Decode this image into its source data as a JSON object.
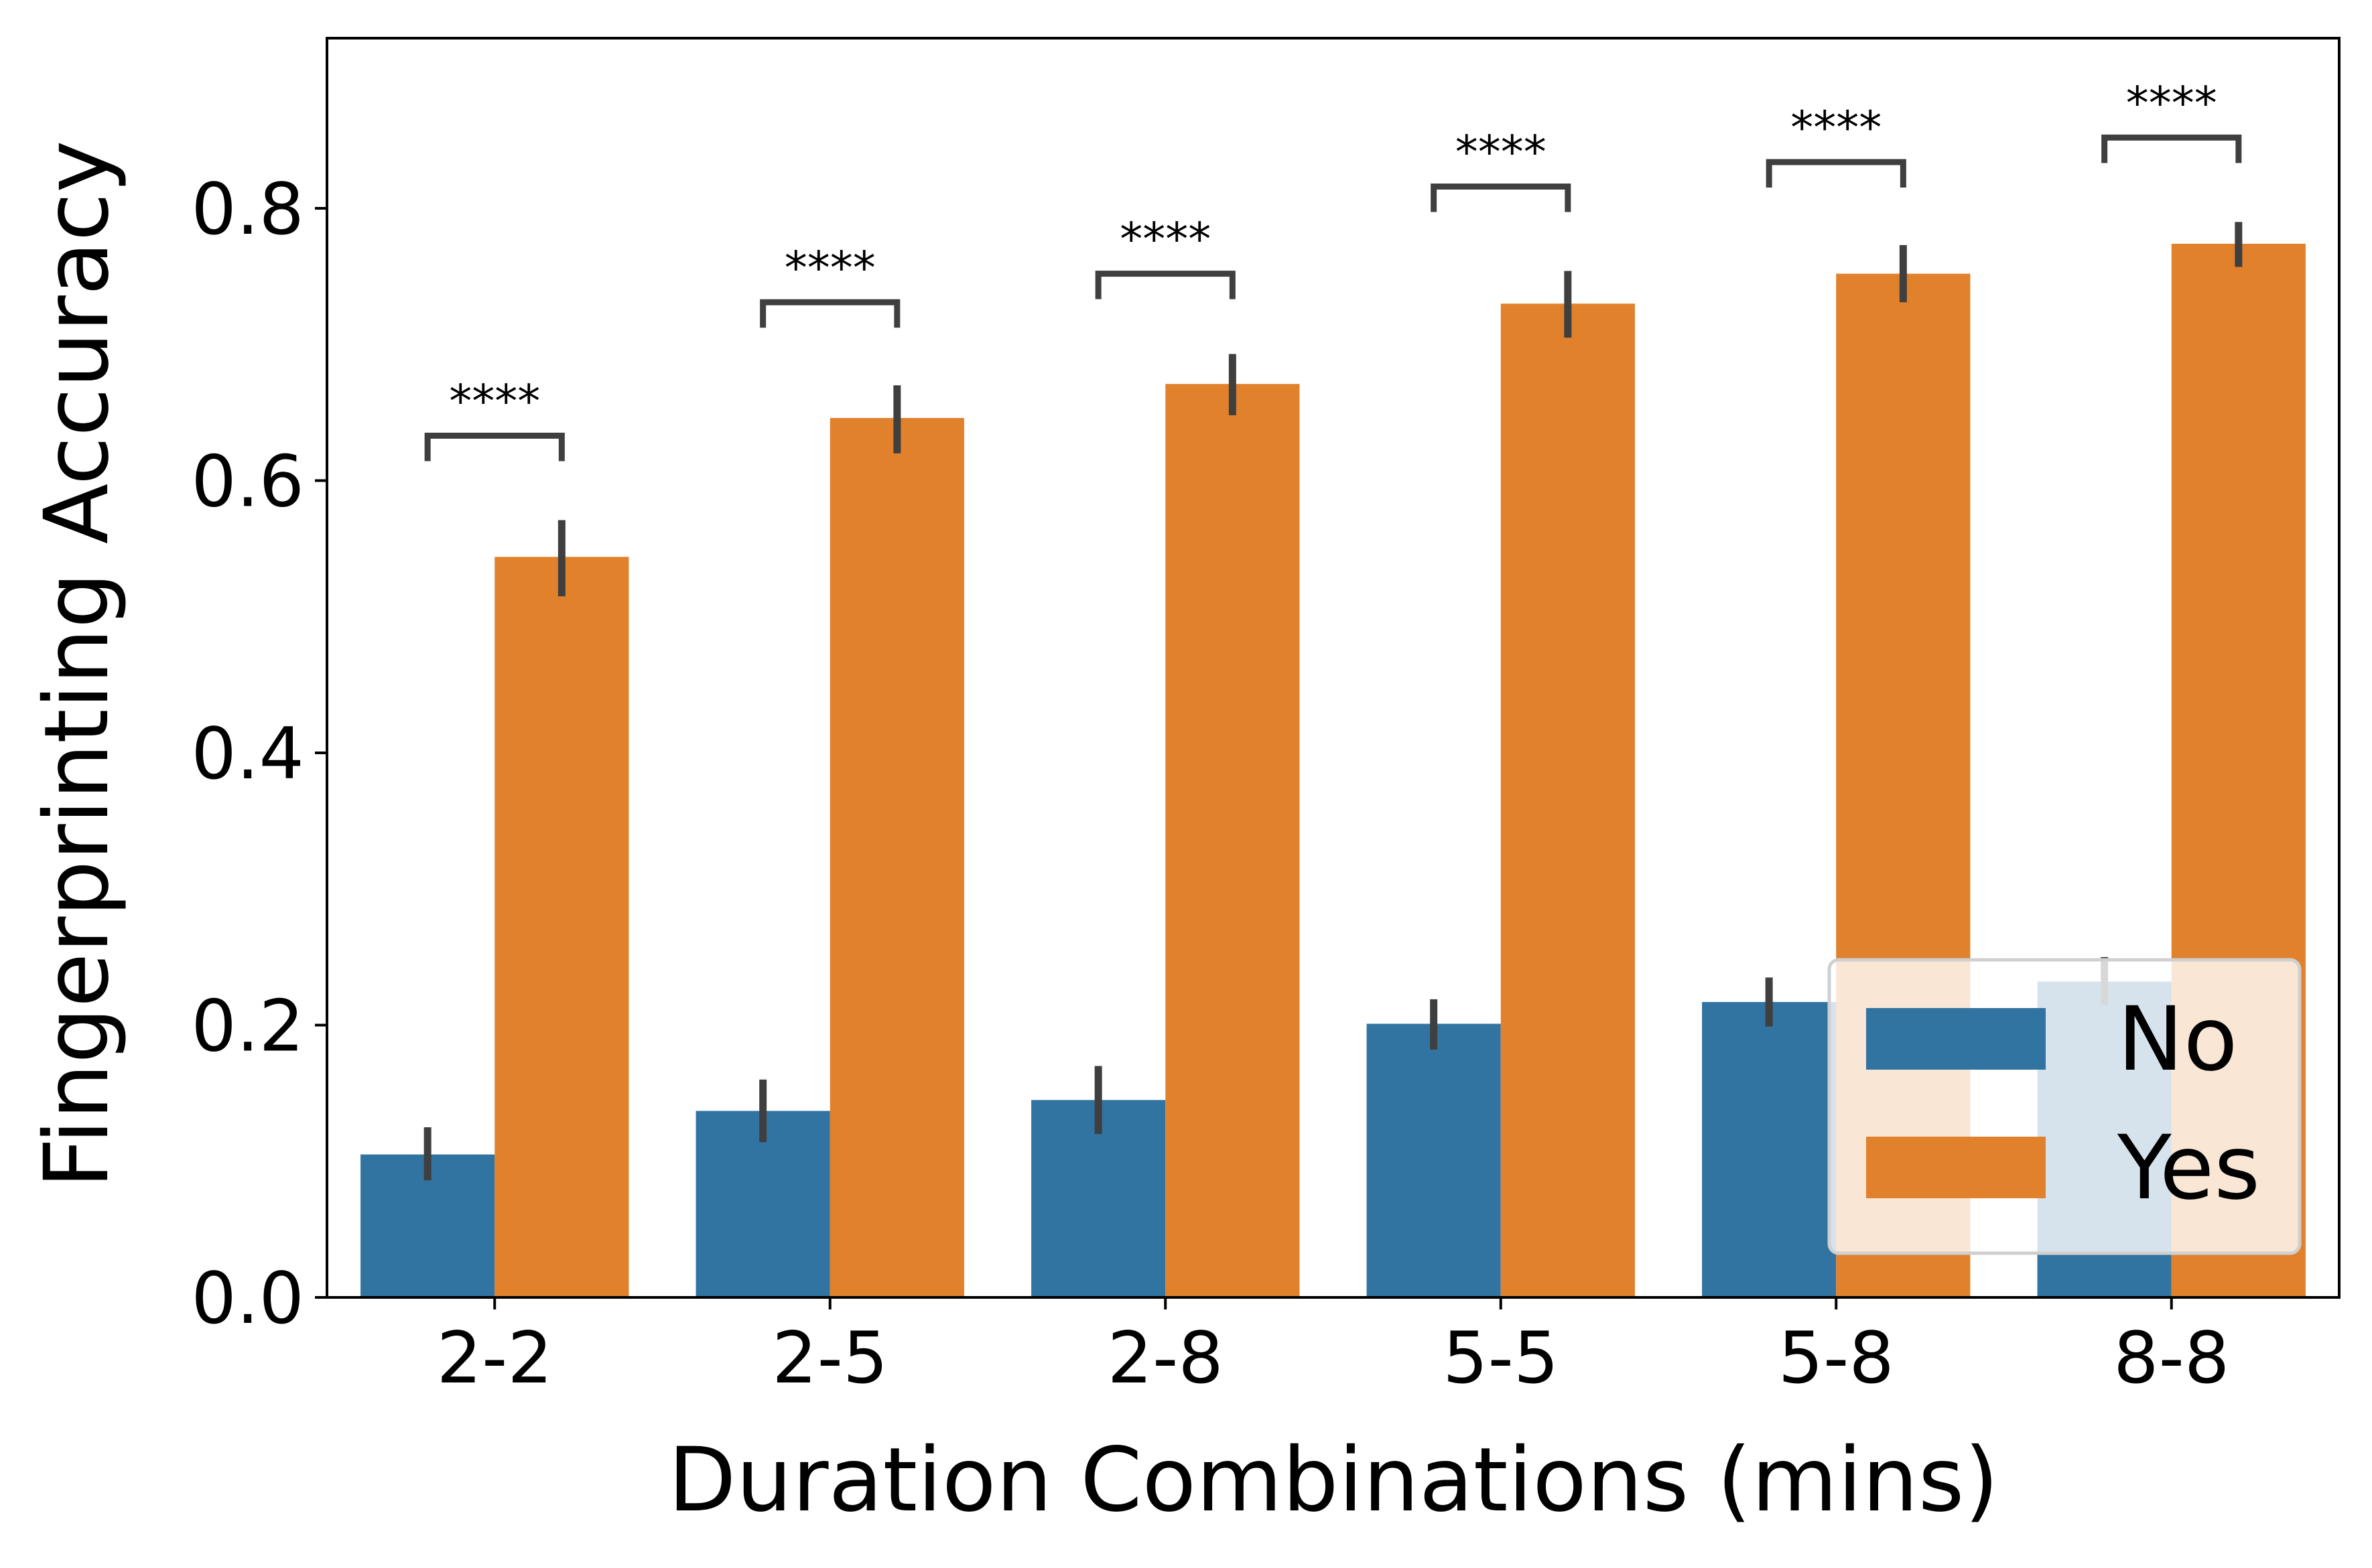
{
  "chart_data": {
    "type": "bar",
    "xlabel": "Duration Combinations (mins)",
    "ylabel": "Fingerprinting Accuracy",
    "categories": [
      "2-2",
      "2-5",
      "2-8",
      "5-5",
      "5-8",
      "8-8"
    ],
    "ylim": [
      0,
      0.925
    ],
    "yticks": [
      "0.0",
      "0.2",
      "0.4",
      "0.6",
      "0.8"
    ],
    "series": [
      {
        "name": "No",
        "color": "#3274a1",
        "values": [
          0.105,
          0.137,
          0.145,
          0.201,
          0.217,
          0.232
        ],
        "err_low": [
          0.086,
          0.114,
          0.12,
          0.182,
          0.199,
          0.215
        ],
        "err_high": [
          0.125,
          0.16,
          0.17,
          0.219,
          0.235,
          0.25
        ]
      },
      {
        "name": "Yes",
        "color": "#e1812c",
        "values": [
          0.544,
          0.646,
          0.671,
          0.73,
          0.752,
          0.774
        ],
        "err_low": [
          0.515,
          0.62,
          0.648,
          0.705,
          0.731,
          0.757
        ],
        "err_high": [
          0.571,
          0.67,
          0.693,
          0.754,
          0.773,
          0.79
        ]
      }
    ],
    "significance": [
      {
        "category": "2-2",
        "label": "****",
        "y": 0.633
      },
      {
        "category": "2-5",
        "label": "****",
        "y": 0.731
      },
      {
        "category": "2-8",
        "label": "****",
        "y": 0.752
      },
      {
        "category": "5-5",
        "label": "****",
        "y": 0.816
      },
      {
        "category": "5-8",
        "label": "****",
        "y": 0.834
      },
      {
        "category": "8-8",
        "label": "****",
        "y": 0.852
      }
    ],
    "legend": {
      "position": "lower-right",
      "entries": [
        "No",
        "Yes"
      ]
    },
    "grid": false,
    "errorbar_color": "#3f3f3f"
  }
}
